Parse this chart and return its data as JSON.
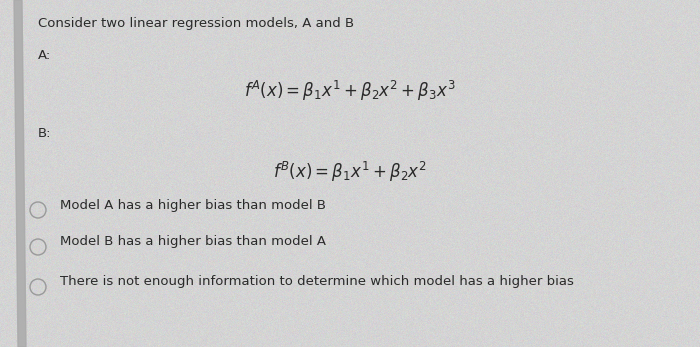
{
  "title": "Consider two linear regression models, A and B",
  "label_a": "A:",
  "label_b": "B:",
  "formula_a": "$f^{A}(x) = \\beta_1 x^1 + \\beta_2 x^2 + \\beta_3 x^3$",
  "formula_b": "$f^{B}(x) = \\beta_1 x^1 + \\beta_2 x^2$",
  "option1": "Model A has a higher bias than model B",
  "option2": "Model B has a higher bias than model A",
  "option3": "There is not enough information to determine which model has a higher bias",
  "bg_color": "#d4d4d4",
  "left_bar_color": "#aaaaaa",
  "text_color": "#2a2a2a",
  "title_fontsize": 9.5,
  "label_fontsize": 9.5,
  "formula_fontsize": 12,
  "option_fontsize": 9.5,
  "circle_color": "#999999",
  "circle_linewidth": 1.0
}
